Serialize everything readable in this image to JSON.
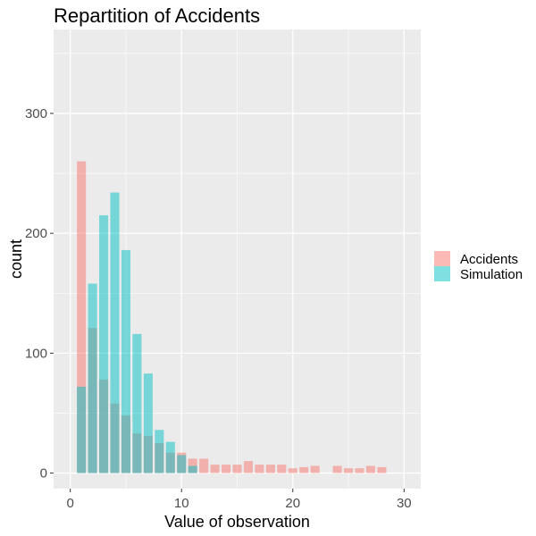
{
  "chart_data": {
    "type": "bar",
    "title": "Repartition of Accidents",
    "xlabel": "Value of observation",
    "ylabel": "count",
    "xlim": [
      -1.5,
      31.5
    ],
    "ylim": [
      -13,
      370
    ],
    "xticks": [
      0,
      10,
      20,
      30
    ],
    "yticks": [
      0,
      100,
      200,
      300
    ],
    "grid": true,
    "legend_position": "right",
    "bin_width": 1,
    "series": [
      {
        "name": "Accidents",
        "color": "#F8766D",
        "x": [
          1,
          2,
          3,
          4,
          5,
          6,
          7,
          8,
          9,
          10,
          11,
          12,
          13,
          14,
          15,
          16,
          17,
          18,
          19,
          20,
          21,
          22,
          23,
          24,
          25,
          26,
          27,
          28,
          29
        ],
        "values": [
          260,
          121,
          78,
          58,
          48,
          33,
          31,
          25,
          17,
          17,
          12,
          12,
          7,
          7,
          7,
          10,
          7,
          7,
          7,
          4,
          5,
          6,
          0,
          6,
          4,
          4,
          6,
          5,
          0
        ]
      },
      {
        "name": "Simulation",
        "color": "#00BFC4",
        "x": [
          1,
          2,
          3,
          4,
          5,
          6,
          7,
          8,
          9,
          10,
          11
        ],
        "values": [
          72,
          158,
          215,
          234,
          186,
          116,
          83,
          36,
          26,
          15,
          6
        ]
      }
    ]
  }
}
